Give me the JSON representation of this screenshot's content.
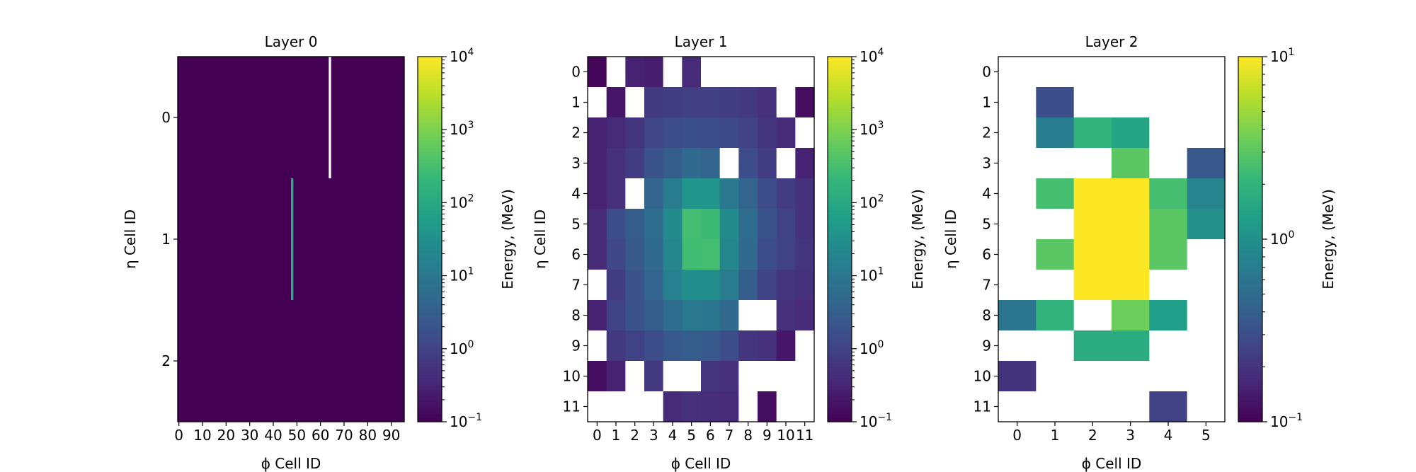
{
  "chart_data": [
    {
      "type": "heatmap",
      "title": "Layer 0",
      "xlabel": "ϕ Cell ID",
      "ylabel": "η Cell ID",
      "n_cols": 96,
      "n_rows": 3,
      "xlim": [
        -0.5,
        95.5
      ],
      "ylim": [
        -0.5,
        2.5
      ],
      "x_ticks": [
        0,
        10,
        20,
        30,
        40,
        50,
        60,
        70,
        80,
        90
      ],
      "x_tick_labels": [
        "0",
        "10",
        "20",
        "30",
        "40",
        "50",
        "60",
        "70",
        "80",
        "90"
      ],
      "y_ticks": [
        0,
        1,
        2
      ],
      "y_tick_labels": [
        "0",
        "1",
        "2"
      ],
      "scale": "log",
      "default_value": 0.1,
      "cells": [
        {
          "col": 48,
          "row": 1,
          "value": 100
        },
        {
          "col": 64,
          "row": 0,
          "value": null
        }
      ],
      "colorbar": {
        "label": "Energy, (MeV)",
        "min": 0.1,
        "max": 10000,
        "tick_bases": [
          "10",
          "10",
          "10",
          "10",
          "10",
          "10"
        ],
        "tick_exponents": [
          "−1",
          "0",
          "1",
          "2",
          "3",
          "4"
        ],
        "tick_values": [
          0.1,
          1,
          10,
          100,
          1000,
          10000
        ]
      }
    },
    {
      "type": "heatmap",
      "title": "Layer 1",
      "xlabel": "ϕ Cell ID",
      "ylabel": "η Cell ID",
      "n_cols": 12,
      "n_rows": 12,
      "xlim": [
        -0.5,
        11.5
      ],
      "ylim": [
        -0.5,
        11.5
      ],
      "x_ticks": [
        0,
        1,
        2,
        3,
        4,
        5,
        6,
        7,
        8,
        9,
        10,
        11
      ],
      "x_tick_labels": [
        "0",
        "1",
        "2",
        "3",
        "4",
        "5",
        "6",
        "7",
        "8",
        "9",
        "10",
        "11"
      ],
      "y_ticks": [
        0,
        1,
        2,
        3,
        4,
        5,
        6,
        7,
        8,
        9,
        10,
        11
      ],
      "y_tick_labels": [
        "0",
        "1",
        "2",
        "3",
        "4",
        "5",
        "6",
        "7",
        "8",
        "9",
        "10",
        "11"
      ],
      "scale": "log",
      "values": [
        [
          0.12,
          null,
          0.3,
          0.25,
          null,
          0.4,
          null,
          null,
          null,
          null,
          null,
          null
        ],
        [
          null,
          0.2,
          null,
          0.7,
          0.8,
          0.9,
          0.9,
          0.8,
          0.7,
          0.5,
          null,
          0.15
        ],
        [
          0.3,
          0.4,
          0.6,
          1.2,
          1.5,
          1.7,
          1.6,
          1.3,
          1.0,
          0.6,
          0.4,
          null
        ],
        [
          0.3,
          0.5,
          0.8,
          2.0,
          3.0,
          5.0,
          4.0,
          null,
          1.5,
          0.8,
          null,
          0.3
        ],
        [
          0.3,
          0.5,
          null,
          4.0,
          12,
          40,
          40,
          10,
          4.0,
          1.5,
          0.8,
          0.5
        ],
        [
          0.4,
          1.5,
          3.0,
          6.0,
          25,
          300,
          250,
          25,
          6.0,
          2.0,
          1.0,
          0.5
        ],
        [
          0.4,
          1.2,
          2.5,
          5.0,
          20,
          280,
          300,
          20,
          5.0,
          1.5,
          1.0,
          0.6
        ],
        [
          null,
          0.8,
          2.0,
          4.0,
          15,
          30,
          28,
          12,
          3.0,
          1.0,
          0.6,
          0.5
        ],
        [
          0.3,
          1.0,
          2.0,
          3.0,
          6.0,
          10,
          9.0,
          5.0,
          null,
          null,
          0.5,
          0.4
        ],
        [
          null,
          0.7,
          1.0,
          1.5,
          2.5,
          3.0,
          2.5,
          1.5,
          0.6,
          0.5,
          0.2,
          null
        ],
        [
          0.15,
          0.3,
          null,
          0.7,
          null,
          null,
          0.6,
          0.5,
          null,
          null,
          null,
          null
        ],
        [
          null,
          null,
          null,
          null,
          0.4,
          0.5,
          0.45,
          0.4,
          null,
          0.15,
          null,
          null
        ]
      ],
      "colorbar": {
        "label": "Energy, (MeV)",
        "min": 0.1,
        "max": 10000,
        "tick_bases": [
          "10",
          "10",
          "10",
          "10",
          "10",
          "10"
        ],
        "tick_exponents": [
          "−1",
          "0",
          "1",
          "2",
          "3",
          "4"
        ],
        "tick_values": [
          0.1,
          1,
          10,
          100,
          1000,
          10000
        ]
      }
    },
    {
      "type": "heatmap",
      "title": "Layer 2",
      "xlabel": "ϕ Cell ID",
      "ylabel": "η Cell ID",
      "n_cols": 6,
      "n_rows": 12,
      "xlim": [
        -0.5,
        5.5
      ],
      "ylim": [
        -0.5,
        11.5
      ],
      "x_ticks": [
        0,
        1,
        2,
        3,
        4,
        5
      ],
      "x_tick_labels": [
        "0",
        "1",
        "2",
        "3",
        "4",
        "5"
      ],
      "y_ticks": [
        0,
        1,
        2,
        3,
        4,
        5,
        6,
        7,
        8,
        9,
        10,
        11
      ],
      "y_tick_labels": [
        "0",
        "1",
        "2",
        "3",
        "4",
        "5",
        "6",
        "7",
        "8",
        "9",
        "10",
        "11"
      ],
      "scale": "log",
      "values": [
        [
          null,
          null,
          null,
          null,
          null,
          null
        ],
        [
          null,
          0.3,
          null,
          null,
          null,
          null
        ],
        [
          null,
          0.7,
          2.0,
          1.5,
          null,
          null
        ],
        [
          null,
          null,
          null,
          3.0,
          null,
          0.35
        ],
        [
          null,
          2.5,
          10,
          10,
          2.5,
          0.8
        ],
        [
          null,
          null,
          10,
          10,
          3.0,
          1.0
        ],
        [
          null,
          3.0,
          10,
          10,
          3.0,
          null
        ],
        [
          null,
          null,
          10,
          10,
          null,
          null
        ],
        [
          0.6,
          2.0,
          null,
          3.5,
          1.3,
          null
        ],
        [
          null,
          null,
          1.7,
          1.7,
          null,
          null
        ],
        [
          0.2,
          null,
          null,
          null,
          null,
          null
        ],
        [
          null,
          null,
          null,
          null,
          0.25,
          null
        ]
      ],
      "colorbar": {
        "label": "Energy, (MeV)",
        "min": 0.1,
        "max": 10,
        "tick_bases": [
          "10",
          "10",
          "10"
        ],
        "tick_exponents": [
          "−1",
          "0",
          "1"
        ],
        "tick_values": [
          0.1,
          1,
          10
        ]
      }
    }
  ],
  "colors": {
    "viridis": [
      "#440154",
      "#482878",
      "#3e4989",
      "#31688e",
      "#26828e",
      "#1f9e89",
      "#35b779",
      "#6ece58",
      "#b5de2b",
      "#fde725"
    ],
    "missing": "#ffffff",
    "empty_stripe": "#ffffff"
  }
}
